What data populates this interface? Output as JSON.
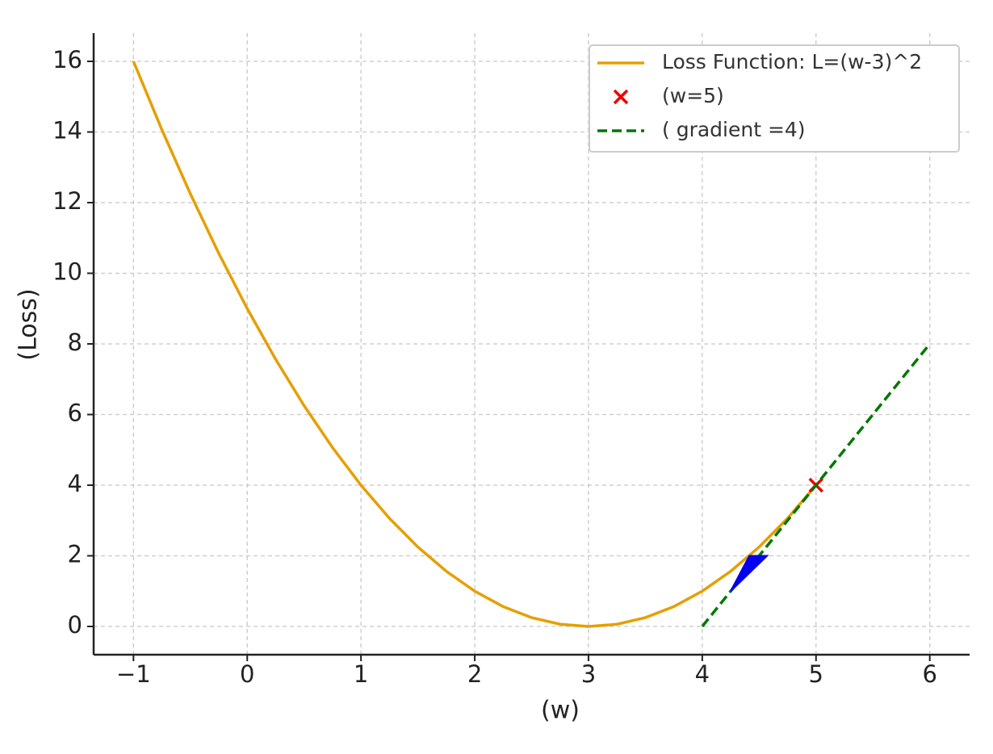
{
  "chart_data": {
    "type": "line",
    "xlabel": "(w)",
    "ylabel": "(Loss)",
    "xlim": [
      -1.35,
      6.35
    ],
    "ylim": [
      -0.8,
      16.8
    ],
    "xticks": [
      {
        "value": -1,
        "label": "−1"
      },
      0,
      1,
      2,
      3,
      4,
      5,
      6
    ],
    "yticks": [
      0,
      2,
      4,
      6,
      8,
      10,
      12,
      14,
      16
    ],
    "grid": true,
    "legend": "upper right",
    "series": [
      {
        "name": "Loss Function: L=(w-3)^2",
        "color": "#e69f00",
        "style": "solid",
        "x": [
          -1,
          -0.75,
          -0.5,
          -0.25,
          0,
          0.25,
          0.5,
          0.75,
          1,
          1.25,
          1.5,
          1.75,
          2,
          2.25,
          2.5,
          2.75,
          3,
          3.25,
          3.5,
          3.75,
          4,
          4.25,
          4.5,
          4.75,
          5
        ],
        "values": [
          16,
          14.0625,
          12.25,
          10.5625,
          9,
          7.5625,
          6.25,
          5.0625,
          4,
          3.0625,
          2.25,
          1.5625,
          1,
          0.5625,
          0.25,
          0.0625,
          0,
          0.0625,
          0.25,
          0.5625,
          1,
          1.5625,
          2.25,
          3.0625,
          4
        ]
      },
      {
        "name": "(w=5)",
        "color": "#ee0000",
        "style": "marker",
        "x": [
          5
        ],
        "values": [
          4
        ]
      },
      {
        "name": "( gradient =4)",
        "color": "#007700",
        "style": "dashed",
        "x": [
          4,
          6
        ],
        "values": [
          0,
          8
        ]
      }
    ],
    "arrow": {
      "color": "#0000ee",
      "x": [
        4.57,
        4.25
      ],
      "y": [
        2.0,
        1.0
      ]
    }
  }
}
